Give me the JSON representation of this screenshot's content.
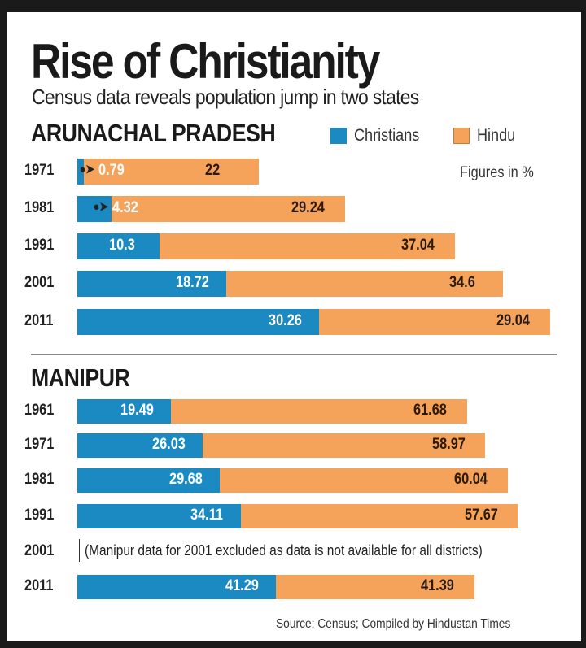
{
  "chart_data": [
    {
      "type": "bar",
      "stacked": true,
      "orientation": "horizontal",
      "title": "Rise of Christianity",
      "subtitle": "Census data reveals population jump in two states",
      "section": "ARUNACHAL PRADESH",
      "units_note": "Figures in %",
      "categories": [
        "1971",
        "1981",
        "1991",
        "2001",
        "2011"
      ],
      "series": [
        {
          "name": "Christians",
          "color": "#1b8ac3",
          "values": [
            0.79,
            4.32,
            10.3,
            18.72,
            30.26
          ],
          "labels": [
            "0.79",
            "4.32",
            "10.3",
            "18.72",
            "30.26"
          ]
        },
        {
          "name": "Hindu",
          "color": "#f5a25a",
          "values": [
            22,
            29.24,
            37.04,
            34.6,
            29.04
          ],
          "labels": [
            "22",
            "29.24",
            "37.04",
            "34.6",
            "29.04"
          ]
        }
      ]
    },
    {
      "type": "bar",
      "stacked": true,
      "orientation": "horizontal",
      "section": "MANIPUR",
      "categories": [
        "1961",
        "1971",
        "1981",
        "1991",
        "2001",
        "2011"
      ],
      "series": [
        {
          "name": "Christians",
          "color": "#1b8ac3",
          "values": [
            19.49,
            26.03,
            29.68,
            34.11,
            null,
            41.29
          ],
          "labels": [
            "19.49",
            "26.03",
            "29.68",
            "34.11",
            "",
            "41.29"
          ]
        },
        {
          "name": "Hindu",
          "color": "#f5a25a",
          "values": [
            61.68,
            58.97,
            60.04,
            57.67,
            null,
            41.39
          ],
          "labels": [
            "61.68",
            "58.97",
            "60.04",
            "57.67",
            "",
            "41.39"
          ]
        }
      ],
      "note": "(Manipur data for 2001 excluded as data is not available for all districts)"
    }
  ],
  "legend": [
    "Christians",
    "Hindu"
  ],
  "source": "Source: Census; Compiled by Hindustan Times"
}
